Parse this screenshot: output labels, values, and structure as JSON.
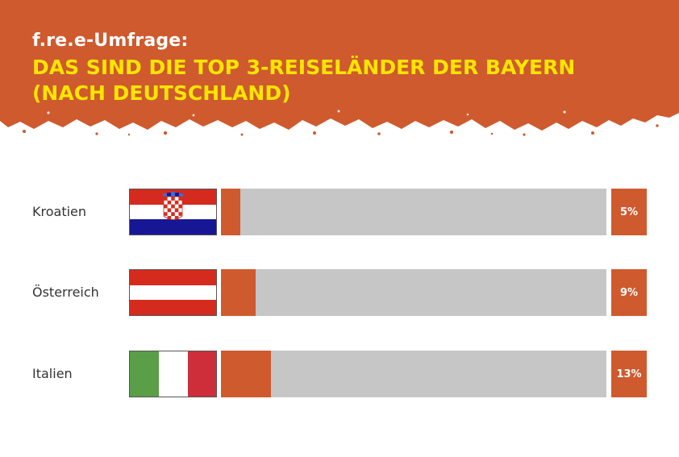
{
  "header": {
    "kicker": "f.re.e-Umfrage:",
    "headline": "DAS SIND DIE TOP 3-REISELÄNDER DER BAYERN (NACH DEUTSCHLAND)",
    "background_color": "#cf5a2e",
    "headline_color": "#ffe500"
  },
  "chart_data": {
    "type": "bar",
    "orientation": "horizontal",
    "categories": [
      "Kroatien",
      "Österreich",
      "Italien"
    ],
    "values": [
      5,
      9,
      13
    ],
    "value_labels": [
      "5%",
      "9%",
      "13%"
    ],
    "xlim": [
      0,
      100
    ],
    "bar_color": "#cf5a2e",
    "track_color": "#c6c6c6",
    "flags": [
      "croatia-flag-icon",
      "austria-flag-icon",
      "italy-flag-icon"
    ]
  }
}
